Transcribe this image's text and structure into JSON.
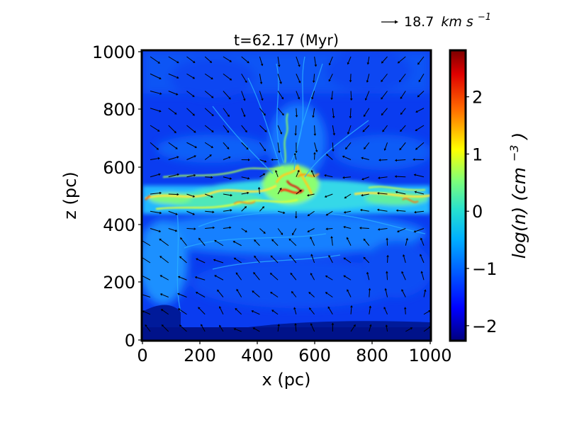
{
  "chart_data": {
    "type": "heatmap",
    "title": "t=62.17 (Myr)",
    "xlabel": "x (pc)",
    "ylabel": "z (pc)",
    "xlim": [
      0,
      1000
    ],
    "ylim": [
      0,
      1000
    ],
    "x_ticks": [
      "0",
      "200",
      "400",
      "600",
      "800",
      "1000"
    ],
    "y_ticks": [
      "0",
      "200",
      "400",
      "600",
      "800",
      "1000"
    ],
    "colorbar": {
      "label": "log(n) (cm−3)",
      "label_prefix": "log(n) (cm",
      "label_exp": "−3",
      "label_suffix": ")",
      "range": [
        -2.25,
        2.8
      ],
      "ticks": [
        "−2",
        "−1",
        "0",
        "1",
        "2"
      ],
      "tick_values": [
        -2,
        -1,
        0,
        1,
        2
      ],
      "colormap": "jet"
    },
    "quiver_key": {
      "label": "18.7 km s−1",
      "value": "18.7",
      "unit_prefix": "km s",
      "unit_exp": "−1"
    },
    "field_description": "gas density slice with velocity vectors",
    "dense_layer_z": [
      400,
      620
    ]
  }
}
